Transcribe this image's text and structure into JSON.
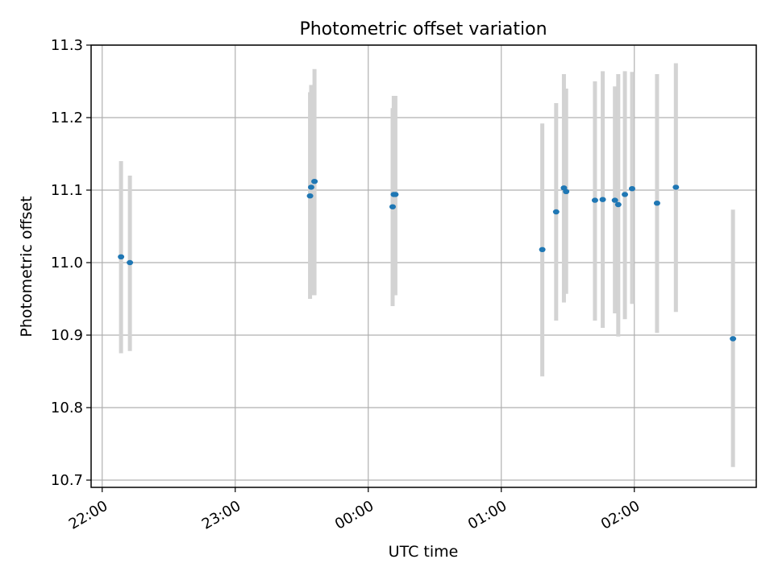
{
  "chart_data": {
    "type": "scatter",
    "title": "Photometric offset variation",
    "xlabel": "UTC time",
    "ylabel": "Photometric offset",
    "x_unit": "UTC clock time, day rolls over after 23:59",
    "xlim": [
      "21:55",
      "02:55"
    ],
    "ylim": [
      10.69,
      11.3
    ],
    "xticks": [
      "22:00",
      "23:00",
      "00:00",
      "01:00",
      "02:00"
    ],
    "yticks": [
      "10.7",
      "10.8",
      "10.9",
      "11.0",
      "11.1",
      "11.2",
      "11.3"
    ],
    "grid": true,
    "colors": {
      "marker": "#1f77b4",
      "errorbar": "#d3d3d3",
      "grid": "#b0b0b0"
    },
    "series": [
      {
        "points": [
          {
            "x": "22:08:30",
            "y": 11.008,
            "ylow": 10.875,
            "yhigh": 11.14
          },
          {
            "x": "22:12:30",
            "y": 11.0,
            "ylow": 10.878,
            "yhigh": 11.12
          },
          {
            "x": "23:33:45",
            "y": 11.092,
            "ylow": 10.95,
            "yhigh": 11.235
          },
          {
            "x": "23:34:15",
            "y": 11.104,
            "ylow": 10.955,
            "yhigh": 11.245
          },
          {
            "x": "23:35:45",
            "y": 11.112,
            "ylow": 10.955,
            "yhigh": 11.267
          },
          {
            "x": "00:11:00",
            "y": 11.077,
            "ylow": 10.94,
            "yhigh": 11.213
          },
          {
            "x": "00:11:30",
            "y": 11.094,
            "ylow": 10.955,
            "yhigh": 11.23
          },
          {
            "x": "00:12:15",
            "y": 11.094,
            "ylow": 10.955,
            "yhigh": 11.23
          },
          {
            "x": "01:18:30",
            "y": 11.018,
            "ylow": 10.843,
            "yhigh": 11.192
          },
          {
            "x": "01:24:45",
            "y": 11.07,
            "ylow": 10.92,
            "yhigh": 11.22
          },
          {
            "x": "01:28:15",
            "y": 11.103,
            "ylow": 10.945,
            "yhigh": 11.26
          },
          {
            "x": "01:29:15",
            "y": 11.098,
            "ylow": 10.957,
            "yhigh": 11.24
          },
          {
            "x": "01:42:15",
            "y": 11.086,
            "ylow": 10.92,
            "yhigh": 11.25
          },
          {
            "x": "01:45:45",
            "y": 11.087,
            "ylow": 10.91,
            "yhigh": 11.264
          },
          {
            "x": "01:51:15",
            "y": 11.086,
            "ylow": 10.93,
            "yhigh": 11.243
          },
          {
            "x": "01:52:45",
            "y": 11.08,
            "ylow": 10.898,
            "yhigh": 11.26
          },
          {
            "x": "01:55:45",
            "y": 11.094,
            "ylow": 10.922,
            "yhigh": 11.264
          },
          {
            "x": "01:59:00",
            "y": 11.102,
            "ylow": 10.943,
            "yhigh": 11.263
          },
          {
            "x": "02:10:15",
            "y": 11.082,
            "ylow": 10.903,
            "yhigh": 11.26
          },
          {
            "x": "02:18:45",
            "y": 11.104,
            "ylow": 10.932,
            "yhigh": 11.275
          },
          {
            "x": "02:44:30",
            "y": 10.895,
            "ylow": 10.718,
            "yhigh": 11.073
          }
        ]
      }
    ]
  }
}
